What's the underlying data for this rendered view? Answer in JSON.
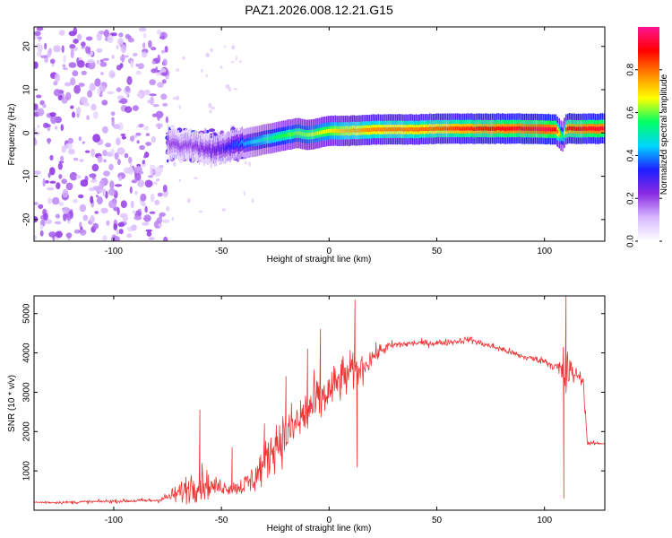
{
  "figure_title": "PAZ1.2026.008.12.21.G15",
  "colors": {
    "snr_line": "#ee3333",
    "axis": "#000000",
    "colormap": [
      "#ffffff",
      "#d8b8ff",
      "#8a2be2",
      "#1e1eff",
      "#00d5ff",
      "#00ff66",
      "#ffff00",
      "#ff8800",
      "#ff0000",
      "#ff1493"
    ]
  },
  "chart_data": [
    {
      "id": "spectrogram",
      "type": "heatmap",
      "xlabel": "Height of straight line (km)",
      "ylabel": "Frequency (Hz)",
      "xlim": [
        -137,
        128
      ],
      "ylim": [
        -25,
        24.5
      ],
      "xticks": [
        -100,
        -50,
        0,
        50,
        100
      ],
      "xtick_labels": [
        "-100",
        "-50",
        "0",
        "50",
        "100"
      ],
      "yticks": [
        -20,
        -10,
        0,
        10,
        20
      ],
      "ytick_labels": [
        "-20",
        "-10",
        "0",
        "10",
        "20"
      ],
      "ridge": {
        "x": [
          -75,
          -70,
          -65,
          -60,
          -55,
          -50,
          -45,
          -40,
          -35,
          -30,
          -25,
          -20,
          -15,
          -10,
          -5,
          0,
          5,
          10,
          20,
          30,
          40,
          50,
          60,
          70,
          80,
          90,
          100,
          105,
          108,
          110,
          115,
          120,
          128
        ],
        "y": [
          -2,
          -3,
          -2.5,
          -3.5,
          -4,
          -3.5,
          -3,
          -2.5,
          -2,
          -1.5,
          -1,
          -0.5,
          0,
          -0.5,
          0,
          0.5,
          0.5,
          0.5,
          0.8,
          0.8,
          0.8,
          1.0,
          1.0,
          1.0,
          1.0,
          1.0,
          0.9,
          0.8,
          -1,
          1.0,
          1.0,
          1.0,
          1.0
        ],
        "amp": [
          0.2,
          0.2,
          0.2,
          0.22,
          0.25,
          0.28,
          0.35,
          0.4,
          0.45,
          0.5,
          0.55,
          0.58,
          0.6,
          0.62,
          0.65,
          0.68,
          0.72,
          0.75,
          0.78,
          0.8,
          0.8,
          0.82,
          0.85,
          0.88,
          0.9,
          0.92,
          0.95,
          0.9,
          0.5,
          0.88,
          0.9,
          0.92,
          0.92
        ]
      },
      "noise_region": {
        "x_from": -137,
        "x_to": -75,
        "typical_amplitude": 0.15
      },
      "scatter_region": {
        "x_from": -75,
        "x_to": -40,
        "center_freq": -3,
        "spread": 6,
        "typical_amplitude": 0.25
      }
    },
    {
      "id": "colorbar",
      "type": "colorbar",
      "label": "Normalized spectral amplitude",
      "range": [
        0,
        1
      ],
      "ticks": [
        0.0,
        0.2,
        0.4,
        0.6,
        0.8
      ],
      "tick_labels": [
        "0.0",
        "0.2",
        "0.4",
        "0.6",
        "0.8"
      ]
    },
    {
      "id": "snr",
      "type": "line",
      "xlabel": "Height of straight line (km)",
      "ylabel": "SNR (10 * v/v)",
      "xlim": [
        -137,
        128
      ],
      "ylim": [
        0,
        5450
      ],
      "xticks": [
        -100,
        -50,
        0,
        50,
        100
      ],
      "xtick_labels": [
        "-100",
        "-50",
        "0",
        "50",
        "100"
      ],
      "yticks": [
        1000,
        2000,
        3000,
        4000,
        5000
      ],
      "ytick_labels": [
        "1000",
        "2000",
        "3000",
        "4000",
        "5000"
      ],
      "envelope": {
        "x": [
          -137,
          -120,
          -100,
          -80,
          -75,
          -70,
          -65,
          -60,
          -55,
          -50,
          -45,
          -40,
          -35,
          -30,
          -25,
          -20,
          -15,
          -10,
          -5,
          0,
          5,
          10,
          15,
          20,
          25,
          30,
          40,
          50,
          60,
          65,
          70,
          80,
          90,
          100,
          105,
          108,
          110,
          112,
          115,
          118,
          119,
          120,
          125,
          128
        ],
        "mean": [
          200,
          200,
          230,
          250,
          330,
          420,
          600,
          750,
          600,
          600,
          560,
          620,
          800,
          1200,
          1700,
          1900,
          2200,
          2500,
          2800,
          3000,
          3300,
          3500,
          3600,
          3900,
          4100,
          4200,
          4250,
          4250,
          4300,
          4350,
          4250,
          4100,
          3900,
          3800,
          3650,
          3500,
          3500,
          3500,
          3450,
          3300,
          2400,
          1700,
          1700,
          1700
        ],
        "amplitude": [
          60,
          70,
          80,
          100,
          220,
          450,
          700,
          900,
          450,
          350,
          300,
          420,
          700,
          900,
          1100,
          1100,
          1200,
          1300,
          1200,
          900,
          1000,
          900,
          700,
          400,
          300,
          200,
          150,
          150,
          150,
          150,
          150,
          150,
          150,
          150,
          250,
          800,
          1800,
          700,
          300,
          200,
          300,
          100,
          80,
          80
        ]
      },
      "spikes": [
        {
          "x": -60,
          "y": 2550
        },
        {
          "x": -45,
          "y": 1600
        },
        {
          "x": -30,
          "y": 2200
        },
        {
          "x": -20,
          "y": 3400
        },
        {
          "x": -10,
          "y": 4100
        },
        {
          "x": -4,
          "y": 4600
        },
        {
          "x": 12,
          "y": 5350
        },
        {
          "x": 13,
          "y": 1100
        },
        {
          "x": 109,
          "y": 300
        },
        {
          "x": 110,
          "y": 5450
        }
      ]
    }
  ]
}
